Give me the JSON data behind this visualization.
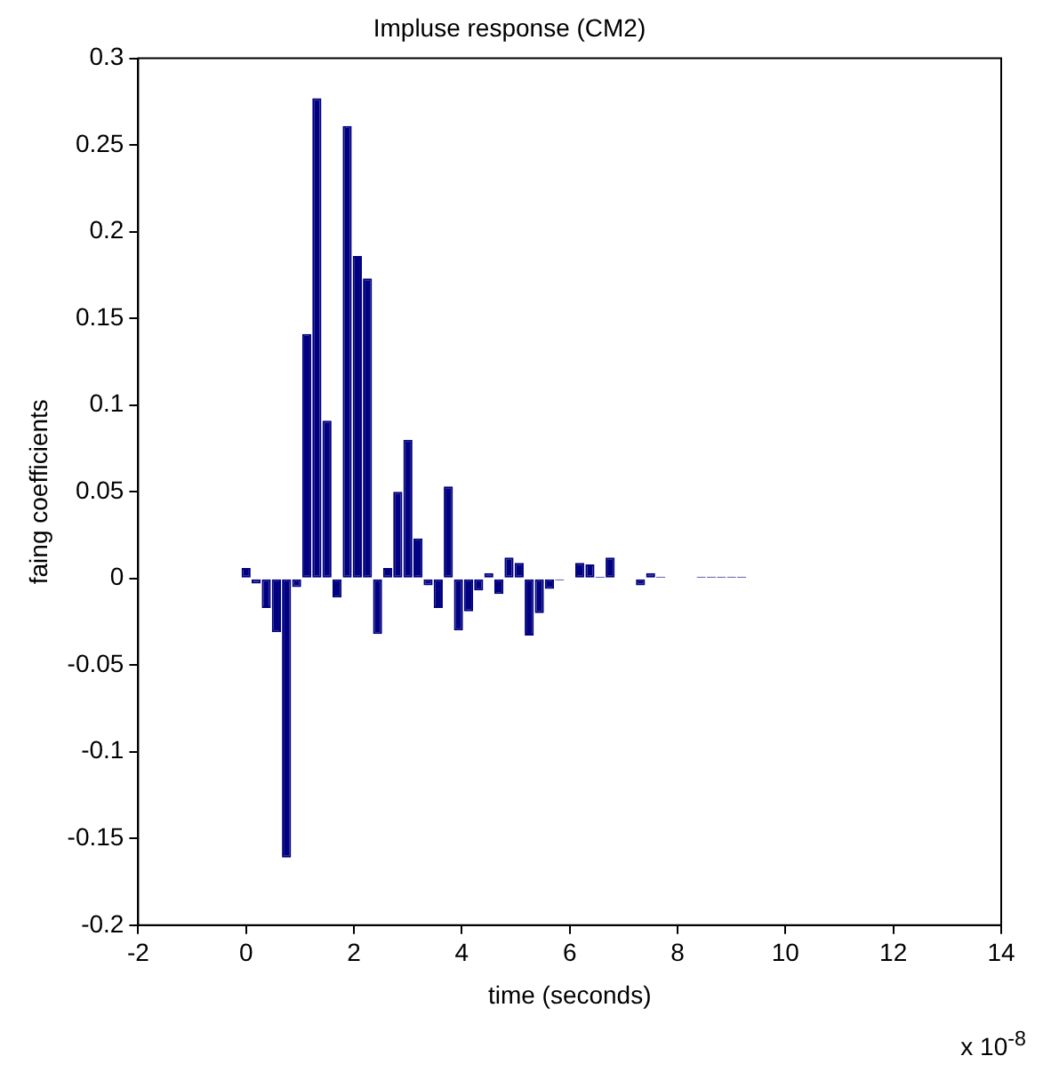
{
  "chart_data": {
    "type": "bar",
    "title": "Impluse response (CM2)",
    "xlabel": "time (seconds)",
    "ylabel": "faing coefficients",
    "annotations": [
      "x 10$^{-8}$"
    ],
    "x": [
      0,
      0.1875,
      0.375,
      0.5625,
      0.75,
      0.9375,
      1.125,
      1.3125,
      1.5,
      1.6875,
      1.875,
      2.0625,
      2.25,
      2.4375,
      2.625,
      2.8125,
      3,
      3.1875,
      3.375,
      3.5625,
      3.75,
      3.9375,
      4.125,
      4.3125,
      4.5,
      4.6875,
      4.875,
      5.0625,
      5.25,
      5.4375,
      5.625,
      5.8125,
      6,
      6.1875,
      6.375,
      6.5625,
      6.75,
      6.9375,
      7.125,
      7.3125,
      7.5,
      7.6875,
      7.875,
      8.0625,
      8.25,
      8.4375,
      8.625,
      8.8125,
      9,
      9.1875,
      9.375,
      9.5625,
      9.75,
      9.9375,
      10.125,
      10.3125,
      10.5,
      10.6875,
      10.875,
      11.0625,
      11.25,
      11.4375,
      11.625,
      11.8125,
      12
    ],
    "values": [
      0.006,
      -0.003,
      -0.017,
      -0.031,
      -0.161,
      -0.005,
      0.141,
      0.277,
      0.091,
      -0.011,
      0.261,
      0.186,
      0.173,
      -0.032,
      0.006,
      0.05,
      0.08,
      0.023,
      -0.004,
      -0.017,
      0.053,
      -0.03,
      -0.019,
      -0.007,
      0.003,
      -0.009,
      0.012,
      0.009,
      -0.033,
      -0.02,
      -0.006,
      -0.001,
      0,
      0.009,
      0.008,
      0.001,
      0.012,
      0,
      0,
      -0.004,
      0.003,
      0.001,
      0,
      0,
      0,
      0.001,
      0.001,
      0.001,
      0.001,
      0.001,
      0,
      0,
      0,
      0,
      0,
      0,
      0,
      0,
      0,
      0,
      0,
      0,
      0,
      0,
      0
    ],
    "color": "#000080",
    "xlim": [
      -2,
      14
    ],
    "xticks": [
      -2,
      0,
      2,
      4,
      6,
      8,
      10,
      12,
      14
    ],
    "ylim": [
      -0.2,
      0.3
    ],
    "yticks": [
      -0.2,
      -0.15,
      -0.1,
      -0.05,
      0,
      0.05,
      0.1,
      0.15,
      0.2,
      0.25,
      0.3
    ],
    "grid": false,
    "legend": false
  }
}
